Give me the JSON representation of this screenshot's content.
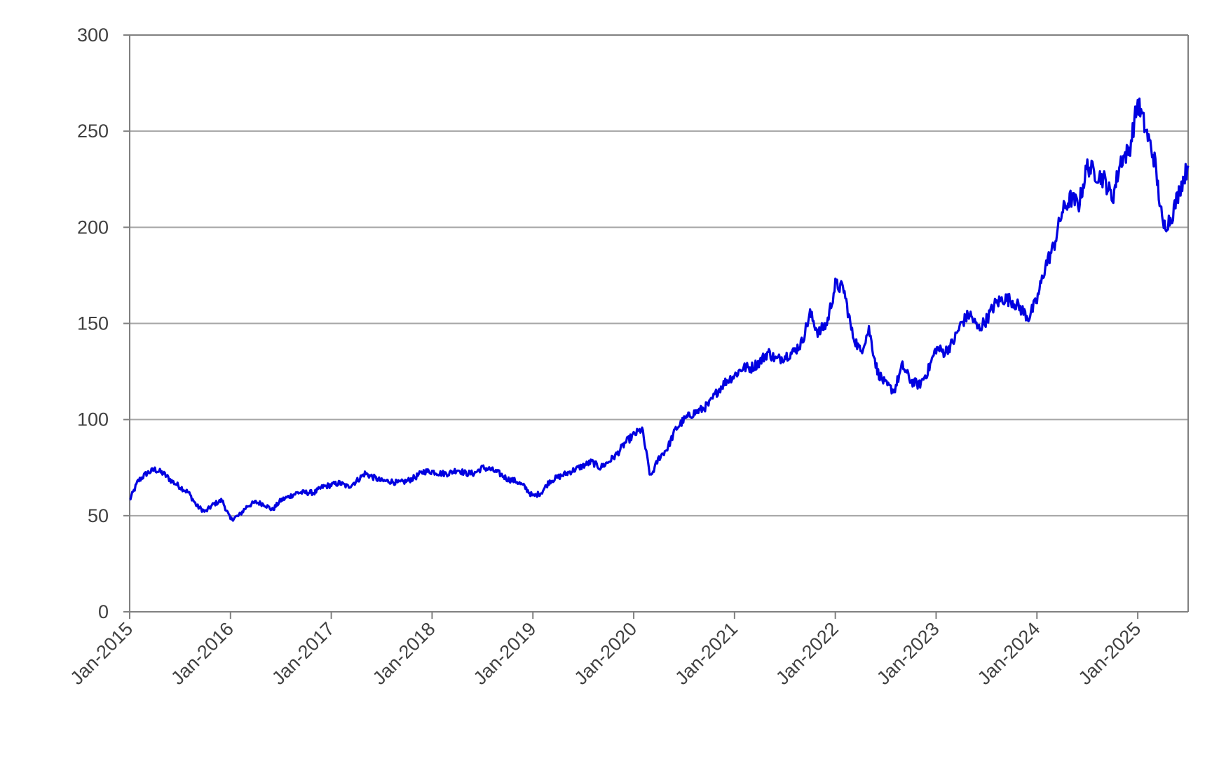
{
  "chart_data": {
    "type": "line",
    "title": "",
    "xlabel": "",
    "ylabel": "",
    "ylim": [
      0,
      300
    ],
    "y_ticks": [
      0,
      50,
      100,
      150,
      200,
      250,
      300
    ],
    "y_tick_labels": [
      "0",
      "50",
      "100",
      "150",
      "200",
      "250",
      "300"
    ],
    "x_tick_labels": [
      "Jan-2015",
      "Jan-2016",
      "Jan-2017",
      "Jan-2018",
      "Jan-2019",
      "Jan-2020",
      "Jan-2021",
      "Jan-2022",
      "Jan-2023",
      "Jan-2024",
      "Jan-2025"
    ],
    "xlim": [
      "2015-01",
      "2025-07"
    ],
    "grid": true,
    "legend": "none",
    "line_color": "#0000e0",
    "series": [
      {
        "x": [
          "2015-01",
          "2015-02",
          "2015-03",
          "2015-04",
          "2015-05",
          "2015-06",
          "2015-07",
          "2015-08",
          "2015-09",
          "2015-10",
          "2015-11",
          "2015-12",
          "2016-01",
          "2016-02",
          "2016-03",
          "2016-04",
          "2016-05",
          "2016-06",
          "2016-07",
          "2016-08",
          "2016-09",
          "2016-10",
          "2016-11",
          "2016-12",
          "2017-01",
          "2017-02",
          "2017-03",
          "2017-04",
          "2017-05",
          "2017-06",
          "2017-07",
          "2017-08",
          "2017-09",
          "2017-10",
          "2017-11",
          "2017-12",
          "2018-01",
          "2018-02",
          "2018-03",
          "2018-04",
          "2018-05",
          "2018-06",
          "2018-07",
          "2018-08",
          "2018-09",
          "2018-10",
          "2018-11",
          "2018-12",
          "2019-01",
          "2019-02",
          "2019-03",
          "2019-04",
          "2019-05",
          "2019-06",
          "2019-07",
          "2019-08",
          "2019-09",
          "2019-10",
          "2019-11",
          "2019-12",
          "2020-01",
          "2020-02",
          "2020-03",
          "2020-04",
          "2020-05",
          "2020-06",
          "2020-07",
          "2020-08",
          "2020-09",
          "2020-10",
          "2020-11",
          "2020-12",
          "2021-01",
          "2021-02",
          "2021-03",
          "2021-04",
          "2021-05",
          "2021-06",
          "2021-07",
          "2021-08",
          "2021-09",
          "2021-10",
          "2021-11",
          "2021-12",
          "2022-01",
          "2022-02",
          "2022-03",
          "2022-04",
          "2022-05",
          "2022-06",
          "2022-07",
          "2022-08",
          "2022-09",
          "2022-10",
          "2022-11",
          "2022-12",
          "2023-01",
          "2023-02",
          "2023-03",
          "2023-04",
          "2023-05",
          "2023-06",
          "2023-07",
          "2023-08",
          "2023-09",
          "2023-10",
          "2023-11",
          "2023-12",
          "2024-01",
          "2024-02",
          "2024-03",
          "2024-04",
          "2024-05",
          "2024-06",
          "2024-07",
          "2024-08",
          "2024-09",
          "2024-10",
          "2024-11",
          "2024-12",
          "2025-01",
          "2025-02",
          "2025-03",
          "2025-04",
          "2025-05",
          "2025-06",
          "2025-07"
        ],
        "values": [
          58,
          68,
          72,
          74,
          72,
          68,
          65,
          62,
          55,
          52,
          56,
          58,
          48,
          50,
          55,
          57,
          56,
          53,
          58,
          60,
          62,
          62,
          62,
          65,
          66,
          67,
          65,
          68,
          72,
          70,
          68,
          68,
          67,
          68,
          70,
          73,
          73,
          72,
          72,
          74,
          72,
          72,
          75,
          74,
          72,
          69,
          68,
          65,
          60,
          62,
          68,
          70,
          72,
          74,
          76,
          78,
          75,
          78,
          82,
          88,
          92,
          95,
          70,
          80,
          85,
          95,
          100,
          103,
          105,
          108,
          115,
          120,
          123,
          127,
          127,
          130,
          135,
          131,
          133,
          135,
          140,
          155,
          145,
          150,
          170,
          168,
          145,
          135,
          147,
          125,
          118,
          115,
          128,
          120,
          118,
          125,
          137,
          135,
          140,
          150,
          155,
          147,
          152,
          160,
          163,
          162,
          158,
          153,
          162,
          180,
          190,
          208,
          215,
          212,
          232,
          228,
          225,
          215,
          235,
          240,
          265,
          250,
          235,
          200,
          205,
          220,
          232
        ]
      }
    ]
  }
}
